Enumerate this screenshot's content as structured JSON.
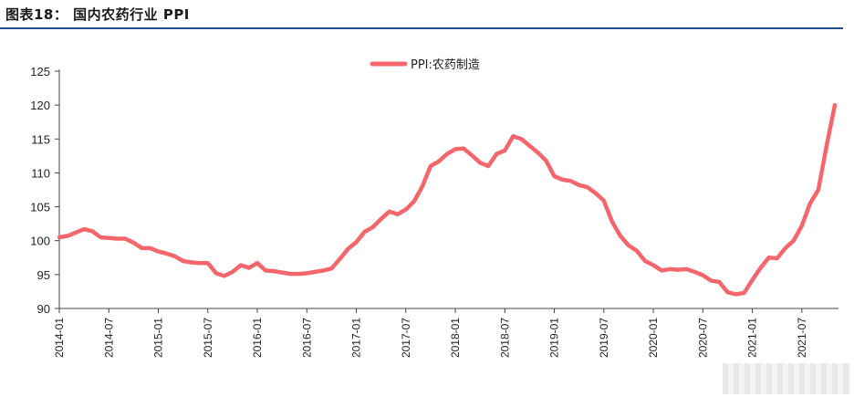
{
  "figure": {
    "title": "图表18：  国内农药行业 PPI"
  },
  "colors": {
    "series": "#f4666b",
    "axis": "#444444",
    "header_rule": "#1f4e8c"
  },
  "chart_data": {
    "type": "line",
    "title": "",
    "xlabel": "",
    "ylabel": "",
    "ylim": [
      90,
      125
    ],
    "yticks": [
      90,
      95,
      100,
      105,
      110,
      115,
      120,
      125
    ],
    "grid": false,
    "legend_position": "top-center",
    "x_start": "2014-01",
    "x_tick_labels": [
      "2014-01",
      "2014-07",
      "2015-01",
      "2015-07",
      "2016-01",
      "2016-07",
      "2017-01",
      "2017-07",
      "2018-01",
      "2018-07",
      "2019-01",
      "2019-07",
      "2020-01",
      "2020-07",
      "2021-01",
      "2021-07"
    ],
    "series": [
      {
        "name": "PPI:农药制造",
        "values": [
          100.5,
          100.7,
          101.2,
          101.7,
          101.4,
          100.5,
          100.4,
          100.3,
          100.3,
          99.7,
          98.9,
          98.9,
          98.4,
          98.1,
          97.7,
          97.0,
          96.8,
          96.7,
          96.7,
          95.2,
          94.8,
          95.4,
          96.4,
          96.0,
          96.7,
          95.6,
          95.5,
          95.3,
          95.1,
          95.1,
          95.2,
          95.4,
          95.6,
          95.9,
          97.3,
          98.8,
          99.8,
          101.3,
          102.0,
          103.2,
          104.3,
          103.9,
          104.6,
          105.8,
          108.0,
          111.0,
          111.7,
          112.8,
          113.5,
          113.6,
          112.6,
          111.5,
          111.0,
          112.8,
          113.3,
          115.4,
          115.0,
          114.0,
          113.0,
          111.8,
          109.5,
          109.0,
          108.8,
          108.2,
          107.9,
          107.0,
          105.9,
          102.8,
          100.7,
          99.3,
          98.5,
          97.0,
          96.4,
          95.6,
          95.8,
          95.7,
          95.8,
          95.4,
          94.9,
          94.1,
          93.9,
          92.4,
          92.1,
          92.3,
          94.2,
          96.0,
          97.5,
          97.4,
          98.9,
          100.0,
          102.2,
          105.5,
          107.5,
          114.0,
          120.0
        ]
      }
    ]
  }
}
